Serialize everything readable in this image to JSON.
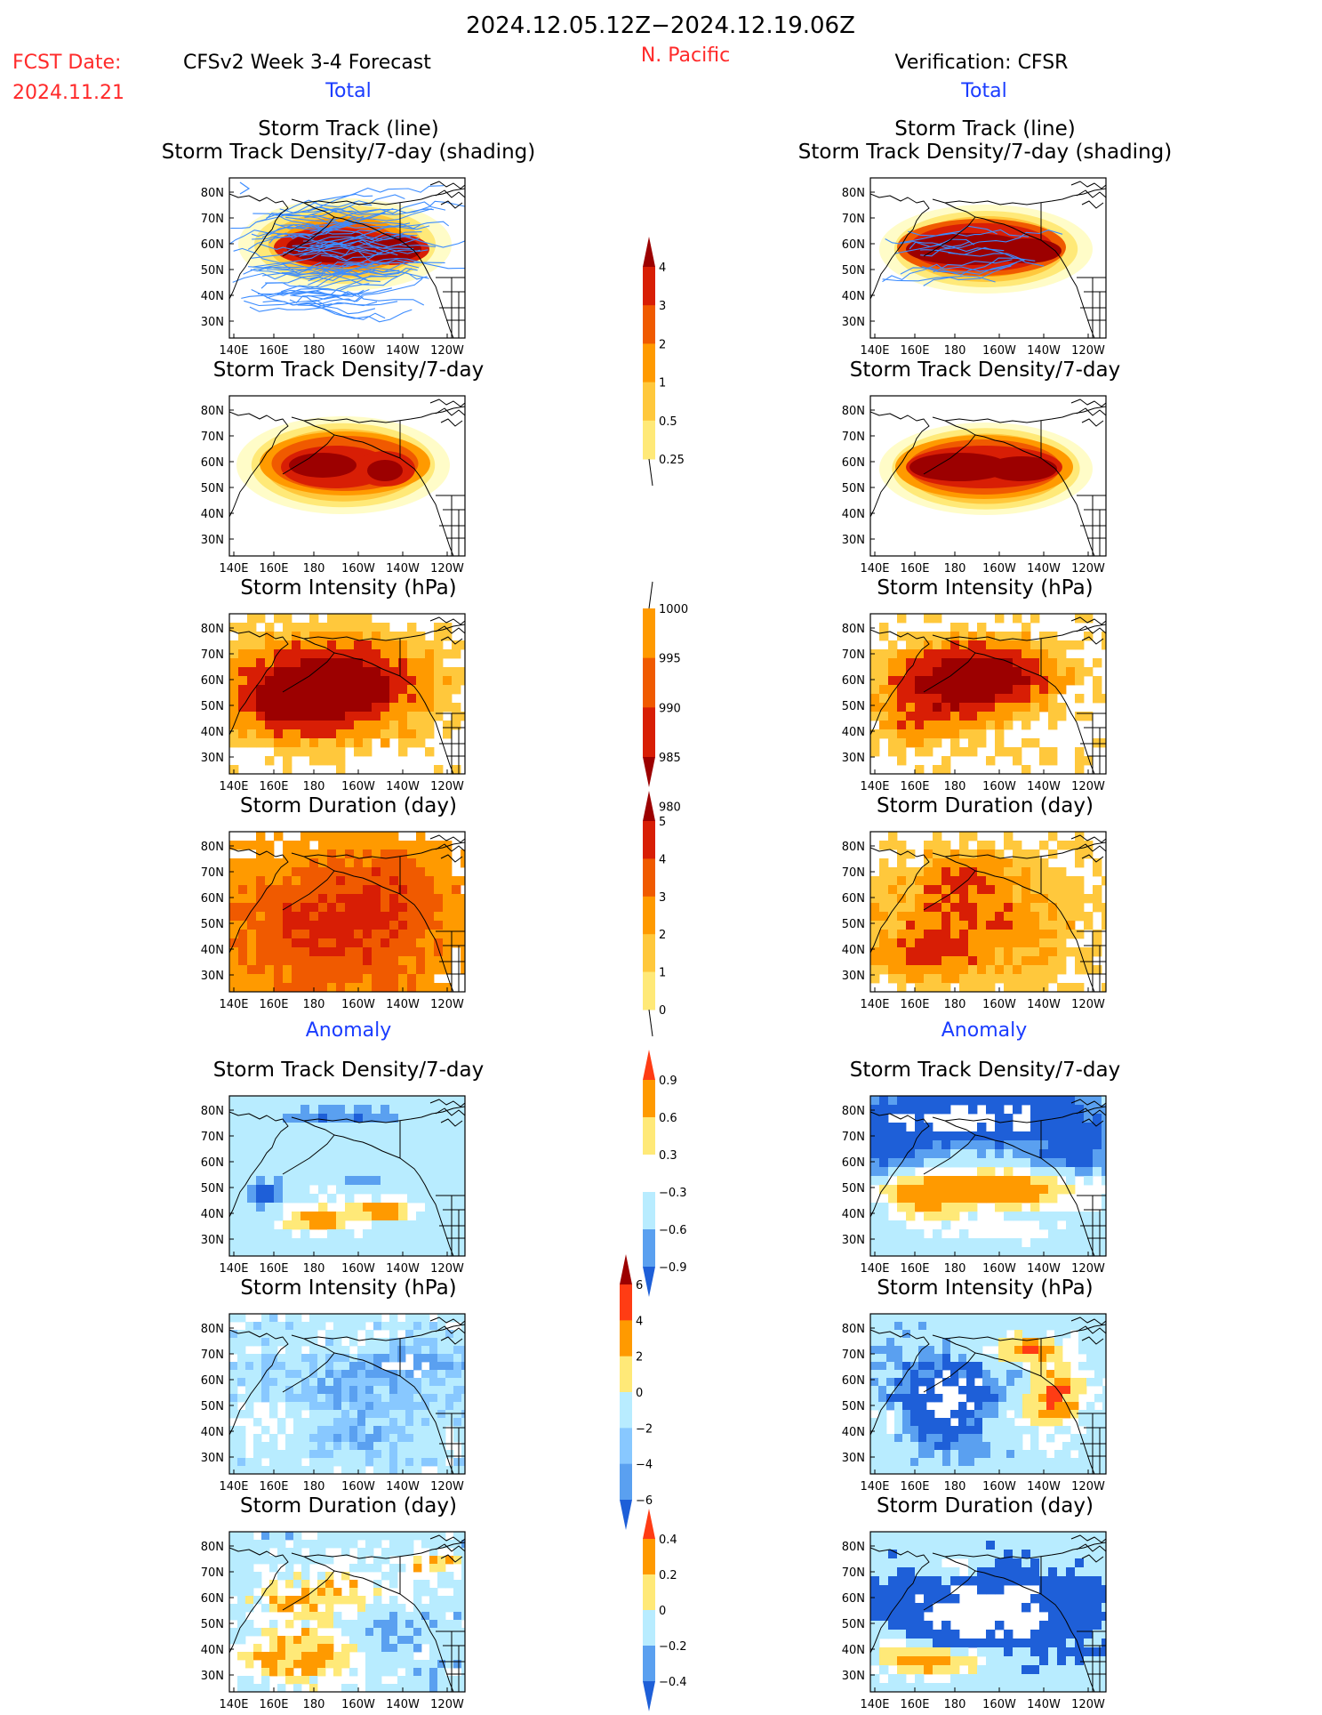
{
  "header": {
    "period": "2024.12.05.12Z−2024.12.19.06Z",
    "fcst_label": "FCST Date:",
    "fcst_date": "2024.11.21",
    "model": "CFSv2 Week 3-4 Forecast",
    "region": "N. Pacific",
    "verification": "Verification: CFSR"
  },
  "sections": {
    "total": "Total",
    "anomaly": "Anomaly"
  },
  "axes": {
    "lat_ticks": [
      "80N",
      "70N",
      "60N",
      "50N",
      "40N",
      "30N"
    ],
    "lon_ticks": [
      "140E",
      "160E",
      "180",
      "160W",
      "140W",
      "120W"
    ]
  },
  "panels": {
    "track1": "Storm Track (line)",
    "track2": "Storm Track Density/7-day (shading)",
    "density": "Storm Track Density/7-day",
    "intensity": "Storm Intensity (hPa)",
    "duration": "Storm Duration (day)"
  },
  "colorbars": [
    {
      "id": "density",
      "labels": [
        "4",
        "3",
        "2",
        "1",
        "0.5",
        "0.25"
      ],
      "colors": [
        "#9c0000",
        "#d81e05",
        "#f05a00",
        "#ff9a00",
        "#ffc83c",
        "#ffe978",
        "#fffcc8"
      ]
    },
    {
      "id": "intensity",
      "labels": [
        "1000",
        "995",
        "990",
        "985",
        "980"
      ],
      "colors": [
        "#fffcc8",
        "#ff9a00",
        "#f05a00",
        "#d81e05",
        "#9c0000"
      ]
    },
    {
      "id": "duration",
      "labels": [
        "5",
        "4",
        "3",
        "2",
        "1",
        "0"
      ],
      "colors": [
        "#9c0000",
        "#d81e05",
        "#f05a00",
        "#ff9a00",
        "#ffc83c",
        "#ffe978",
        "#fffcc8"
      ]
    },
    {
      "id": "anom_density",
      "labels": [
        "0.9",
        "0.6",
        "0.3",
        "−0.3",
        "−0.6",
        "−0.9"
      ],
      "colors": [
        "#ff3c14",
        "#ff9a00",
        "#ffe978",
        "#ffffff",
        "#b8ecff",
        "#5aa0f0",
        "#1e5fd8"
      ]
    },
    {
      "id": "anom_intensity",
      "labels": [
        "6",
        "4",
        "2",
        "0",
        "−2",
        "−4",
        "−6"
      ],
      "colors": [
        "#9c0000",
        "#ff3c14",
        "#ff9a00",
        "#ffe978",
        "#b8ecff",
        "#88c8ff",
        "#5aa0f0",
        "#1e5fd8"
      ]
    },
    {
      "id": "anom_duration",
      "labels": [
        "0.4",
        "0.2",
        "0",
        "−0.2",
        "−0.4"
      ],
      "colors": [
        "#ff3c14",
        "#ff9a00",
        "#ffe978",
        "#b8ecff",
        "#5aa0f0",
        "#1e5fd8"
      ]
    }
  ]
}
